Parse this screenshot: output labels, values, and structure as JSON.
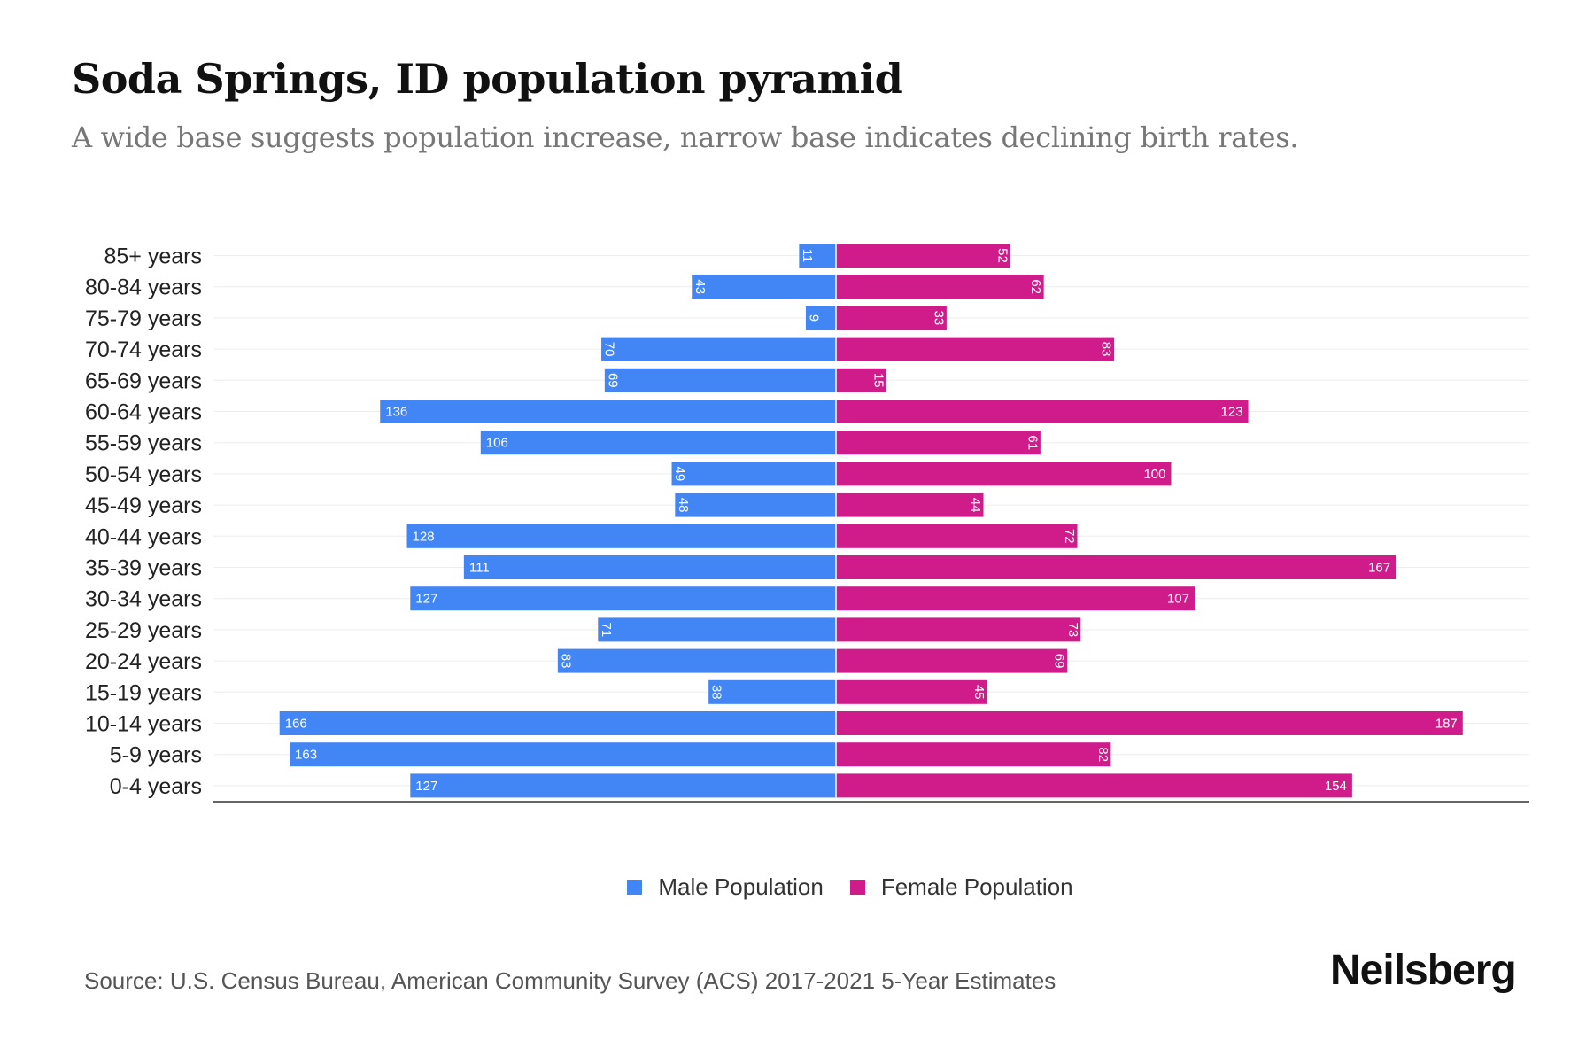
{
  "chart_data": {
    "type": "bar",
    "orientation": "horizontal-pyramid",
    "title": "Soda Springs, ID population pyramid",
    "subtitle": "A wide base suggests population increase, narrow base indicates declining birth rates.",
    "categories": [
      "85+ years",
      "80-84 years",
      "75-79 years",
      "70-74 years",
      "65-69 years",
      "60-64 years",
      "55-59 years",
      "50-54 years",
      "45-49 years",
      "40-44 years",
      "35-39 years",
      "30-34 years",
      "25-29 years",
      "20-24 years",
      "15-19 years",
      "10-14 years",
      "5-9 years",
      "0-4 years"
    ],
    "series": [
      {
        "name": "Male Population",
        "color": "#4285f4",
        "values": [
          11,
          43,
          9,
          70,
          69,
          136,
          106,
          49,
          48,
          128,
          111,
          127,
          71,
          83,
          38,
          166,
          163,
          127
        ]
      },
      {
        "name": "Female Population",
        "color": "#d01c8b",
        "values": [
          52,
          62,
          33,
          83,
          15,
          123,
          61,
          100,
          44,
          72,
          167,
          107,
          73,
          69,
          45,
          187,
          82,
          154
        ]
      }
    ],
    "xlabel": "",
    "ylabel": "",
    "legend_position": "bottom-center",
    "grid": true
  },
  "footer": {
    "source": "Source: U.S. Census Bureau, American Community Survey (ACS) 2017-2021 5-Year Estimates",
    "logo": "Neilsberg"
  }
}
